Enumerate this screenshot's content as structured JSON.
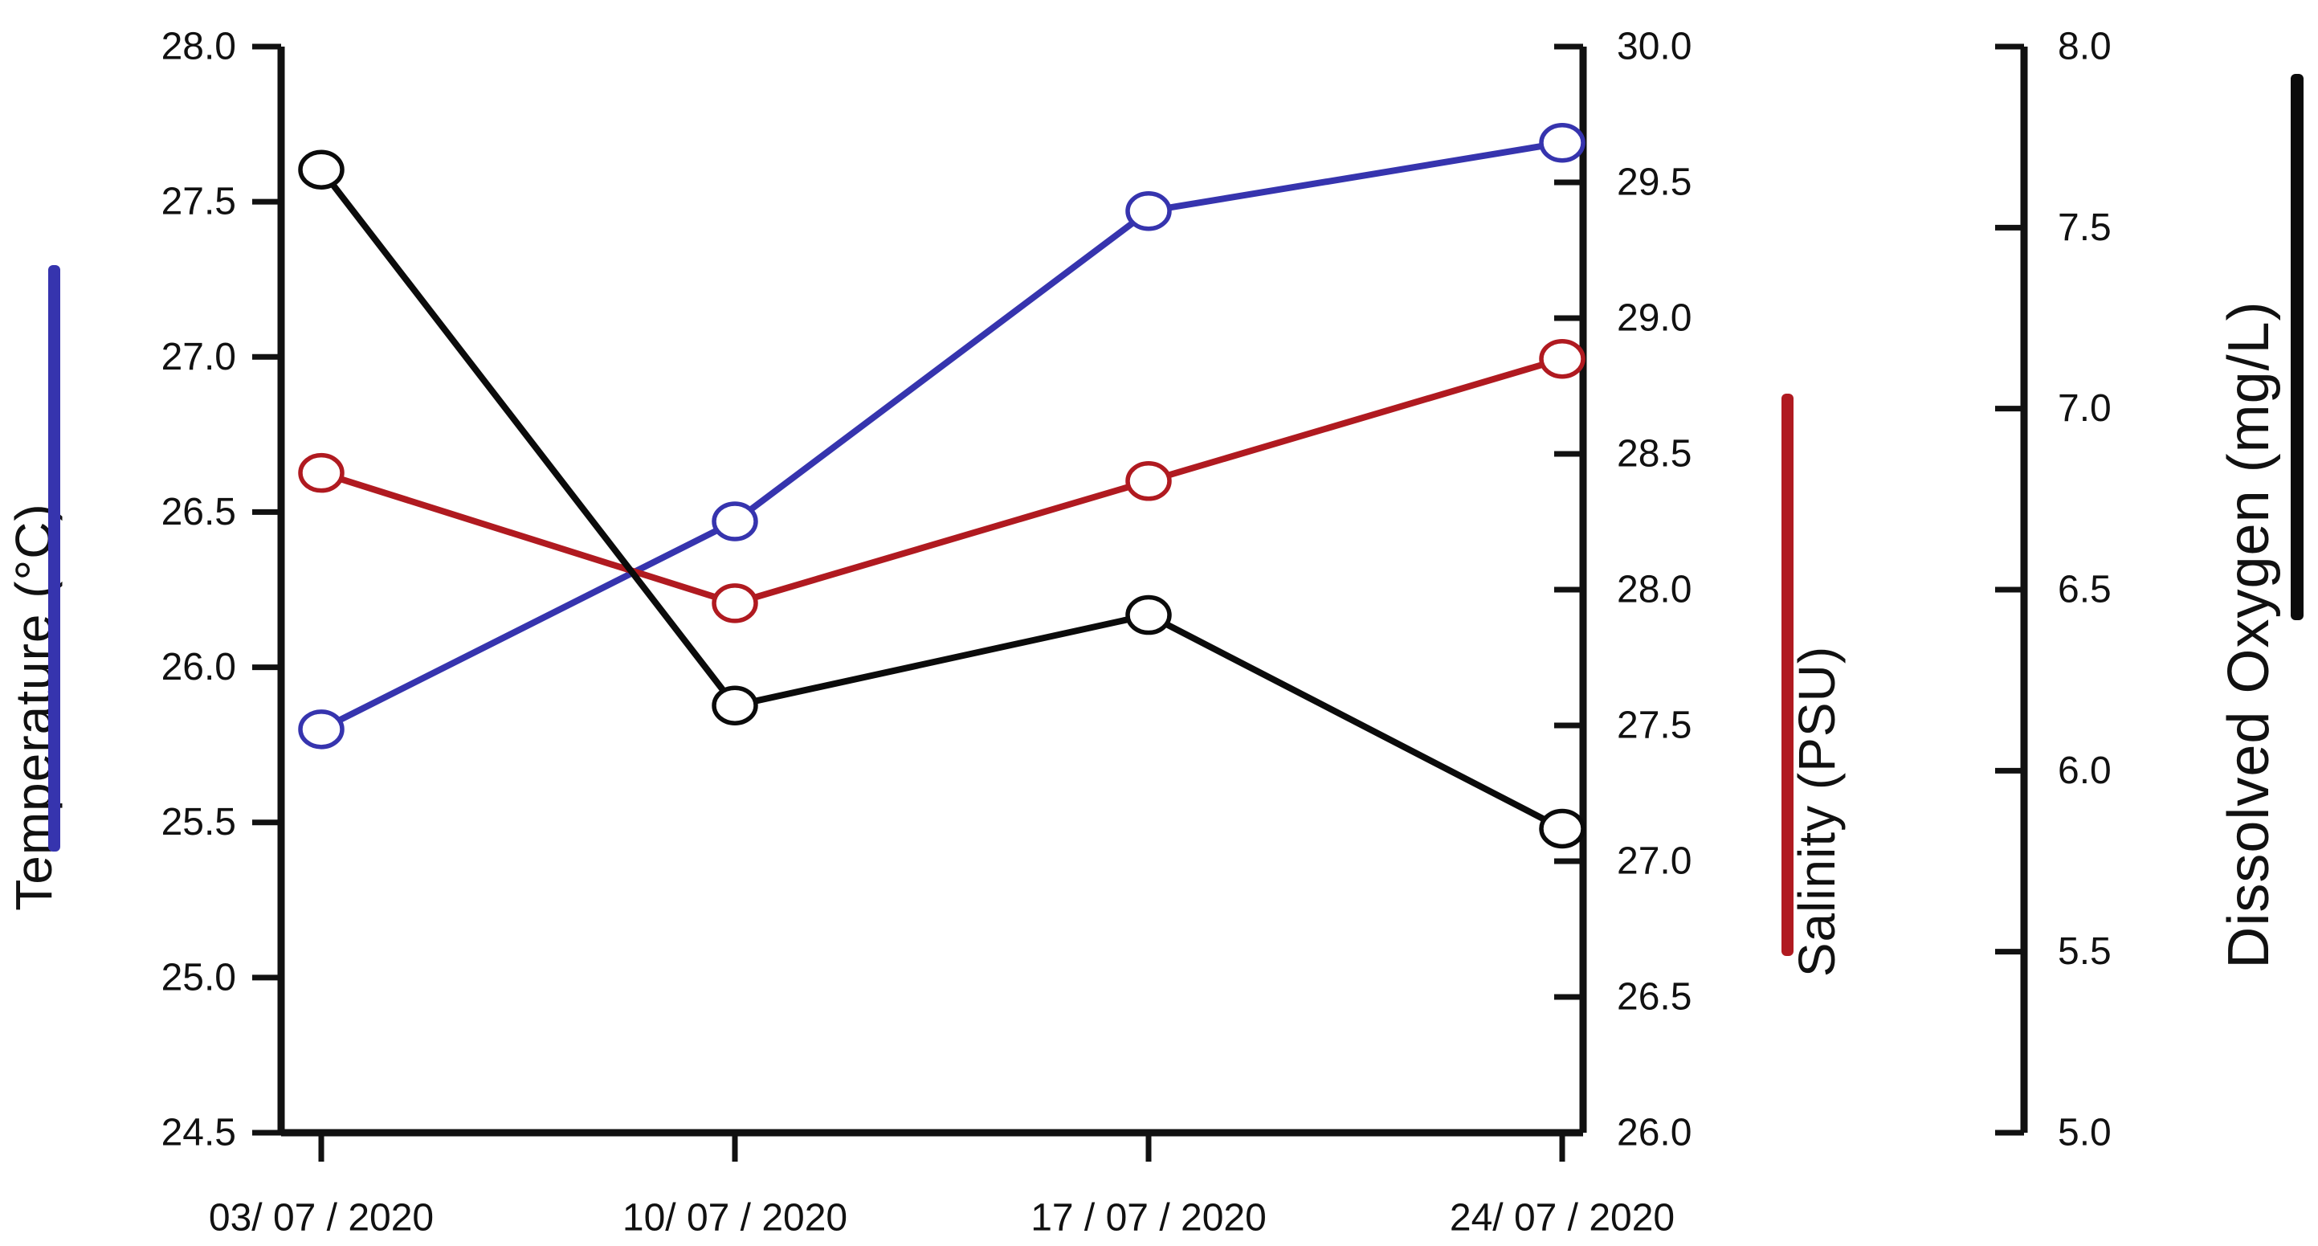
{
  "chart_data": {
    "type": "line",
    "title": "",
    "x_categories": [
      "03/ 07 / 2020",
      "10/ 07 / 2020",
      "17 / 07 / 2020",
      "24/ 07 / 2020"
    ],
    "series": [
      {
        "name": "Temperature",
        "axis": "temperature",
        "color": "#3634ae",
        "marker": "open-circle",
        "values": [
          25.8,
          26.47,
          27.47,
          27.69
        ]
      },
      {
        "name": "Salinity",
        "axis": "salinity",
        "color": "#b01a20",
        "marker": "open-circle",
        "values": [
          28.43,
          27.95,
          28.4,
          28.85
        ]
      },
      {
        "name": "Dissolved Oxygen",
        "axis": "dissolved_oxygen",
        "color": "#0b0b0b",
        "marker": "open-circle",
        "values": [
          7.66,
          6.18,
          6.43,
          5.84
        ]
      }
    ],
    "axes": {
      "temperature": {
        "title": "Temperature (°C)",
        "min": 24.5,
        "max": 28.0,
        "step": 0.5,
        "side": "left",
        "tick_format": "0.0"
      },
      "salinity": {
        "title": "Salinity (PSU)",
        "min": 26.0,
        "max": 30.0,
        "step": 0.5,
        "side": "right-inner",
        "tick_format": "0.0"
      },
      "dissolved_oxygen": {
        "title": "Dissolved Oxygen (mg/L)",
        "min": 5.0,
        "max": 8.0,
        "step": 0.5,
        "side": "right-outer",
        "tick_format": "0.0"
      }
    },
    "grid": false,
    "legend": {
      "style": "vertical color bars beside axis titles",
      "entries": [
        {
          "series": "Temperature",
          "color": "#3634ae"
        },
        {
          "series": "Salinity",
          "color": "#b01a20"
        },
        {
          "series": "Dissolved Oxygen",
          "color": "#0b0b0b"
        }
      ]
    },
    "background": "#ffffff",
    "axis_color": "#111111"
  }
}
